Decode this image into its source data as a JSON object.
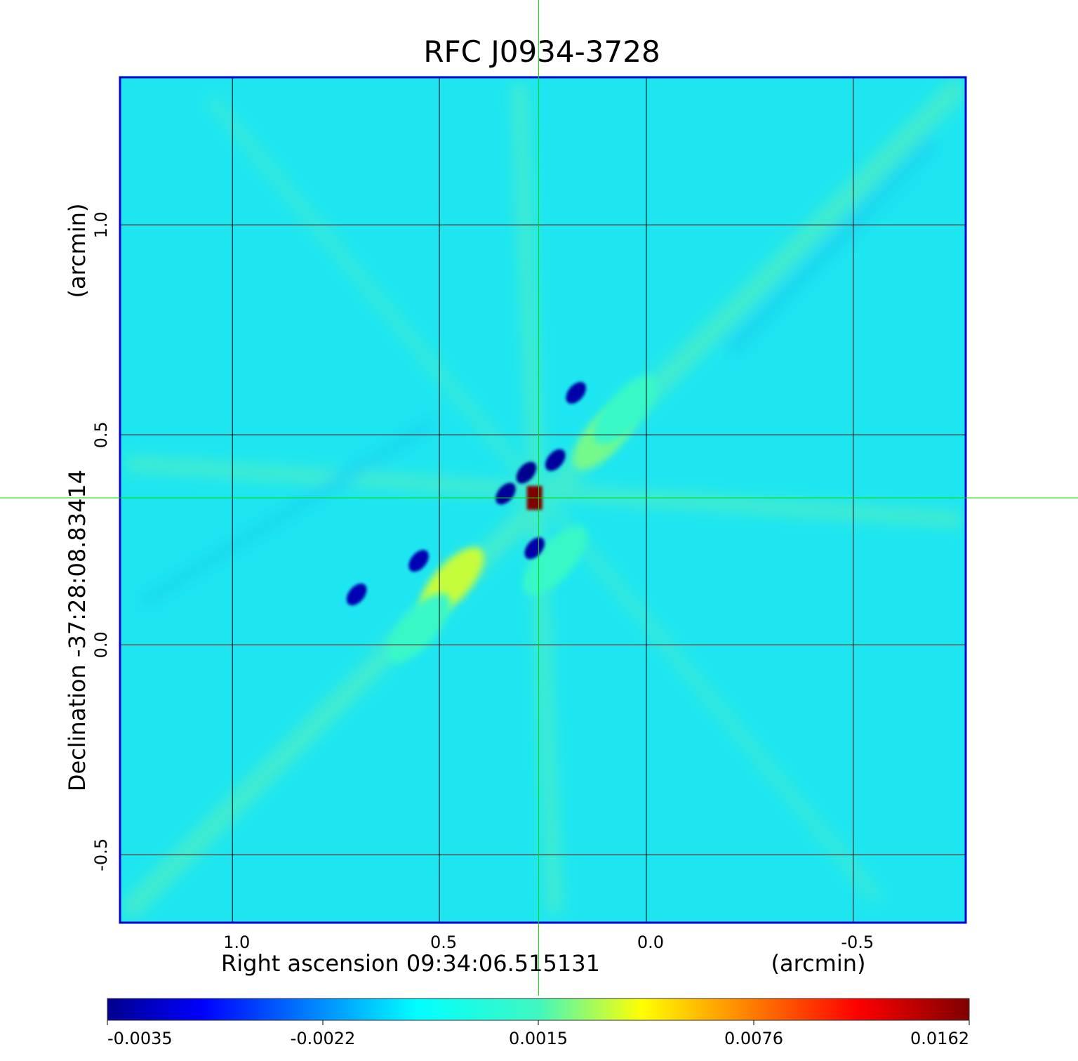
{
  "chart_data": {
    "type": "heatmap",
    "title": "RFC J0934-3728",
    "xlabel": "Right ascension  09:34:06.515131",
    "x_unit": "(arcmin)",
    "ylabel": "Declination  -37:28:08.83414",
    "y_unit": "(arcmin)",
    "xlim": [
      1.27,
      -0.77
    ],
    "ylim": [
      -0.66,
      1.35
    ],
    "x_ticks": [
      1.0,
      0.5,
      0.0,
      -0.5
    ],
    "x_tick_labels": [
      "1.0",
      "0.5",
      "0.0",
      "-0.5"
    ],
    "y_ticks": [
      1.0,
      0.5,
      0.0,
      -0.5
    ],
    "y_tick_labels": [
      "1.0",
      "0.5",
      "0.0",
      "-0.5"
    ],
    "grid": true,
    "crosshair": {
      "x": 0.26,
      "y": 0.35,
      "color": "#00dd00"
    },
    "colorbar": {
      "colormap": "jet",
      "ticks": [
        -0.0035,
        -0.0022,
        0.0015,
        0.0076,
        0.0162
      ],
      "tick_labels": [
        "-0.0035",
        "-0.0022",
        "0.0015",
        "0.0076",
        "0.0162"
      ]
    },
    "features": [
      {
        "kind": "peak",
        "x": 0.27,
        "y": 0.35,
        "value": 0.0162
      },
      {
        "kind": "positive-lobe",
        "x": 0.47,
        "y": 0.15,
        "value": 0.008
      },
      {
        "kind": "positive-lobe",
        "x": 0.55,
        "y": 0.04,
        "value": 0.006
      },
      {
        "kind": "positive-lobe",
        "x": 0.1,
        "y": 0.5,
        "value": 0.007
      },
      {
        "kind": "positive-lobe",
        "x": 0.05,
        "y": 0.56,
        "value": 0.006
      },
      {
        "kind": "positive-lobe",
        "x": 0.22,
        "y": 0.2,
        "value": 0.006
      },
      {
        "kind": "negative-spot",
        "x": 0.29,
        "y": 0.41,
        "value": -0.0035
      },
      {
        "kind": "negative-spot",
        "x": 0.34,
        "y": 0.36,
        "value": -0.0033
      },
      {
        "kind": "negative-spot",
        "x": 0.22,
        "y": 0.44,
        "value": -0.0032
      },
      {
        "kind": "negative-spot",
        "x": 0.17,
        "y": 0.6,
        "value": -0.003
      },
      {
        "kind": "negative-spot",
        "x": 0.55,
        "y": 0.2,
        "value": -0.0028
      },
      {
        "kind": "negative-spot",
        "x": 0.7,
        "y": 0.12,
        "value": -0.0028
      },
      {
        "kind": "negative-spot",
        "x": 0.27,
        "y": 0.23,
        "value": -0.003
      }
    ]
  },
  "colors": {
    "title": "#0000cc",
    "frame": "#0000cc",
    "background_field": "#1ee6f0",
    "grid": "#000000",
    "crosshair": "#00dd00",
    "text": "#000000"
  }
}
